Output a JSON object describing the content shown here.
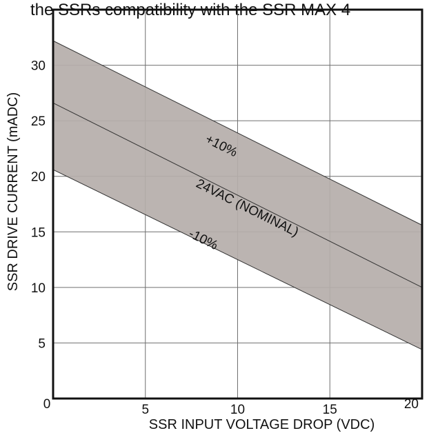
{
  "header": {
    "cropped_text": "the SSRs compatibility with the SSR MAX 4"
  },
  "chart_data": {
    "type": "area",
    "title": "",
    "xlabel": "SSR INPUT VOLTAGE DROP (VDC)",
    "ylabel": "SSR DRIVE CURRENT (mADC)",
    "xlim": [
      0,
      20
    ],
    "ylim": [
      0,
      35
    ],
    "x_ticks": [
      0,
      5,
      10,
      15,
      20
    ],
    "x_tick_labels": [
      "0",
      "5",
      "10",
      "15",
      "20"
    ],
    "y_ticks": [
      5,
      10,
      15,
      20,
      25,
      30
    ],
    "y_tick_labels": [
      "5",
      "10",
      "15",
      "20",
      "25",
      "30"
    ],
    "grid": true,
    "band_color": "#b5aeaa",
    "series": [
      {
        "name": "+10%",
        "x": [
          0,
          20
        ],
        "y": [
          32.2,
          15.6
        ]
      },
      {
        "name": "24VAC (NOMINAL)",
        "x": [
          0,
          20
        ],
        "y": [
          26.6,
          10.0
        ]
      },
      {
        "name": "-10%",
        "x": [
          0,
          20
        ],
        "y": [
          20.6,
          4.4
        ]
      }
    ]
  }
}
